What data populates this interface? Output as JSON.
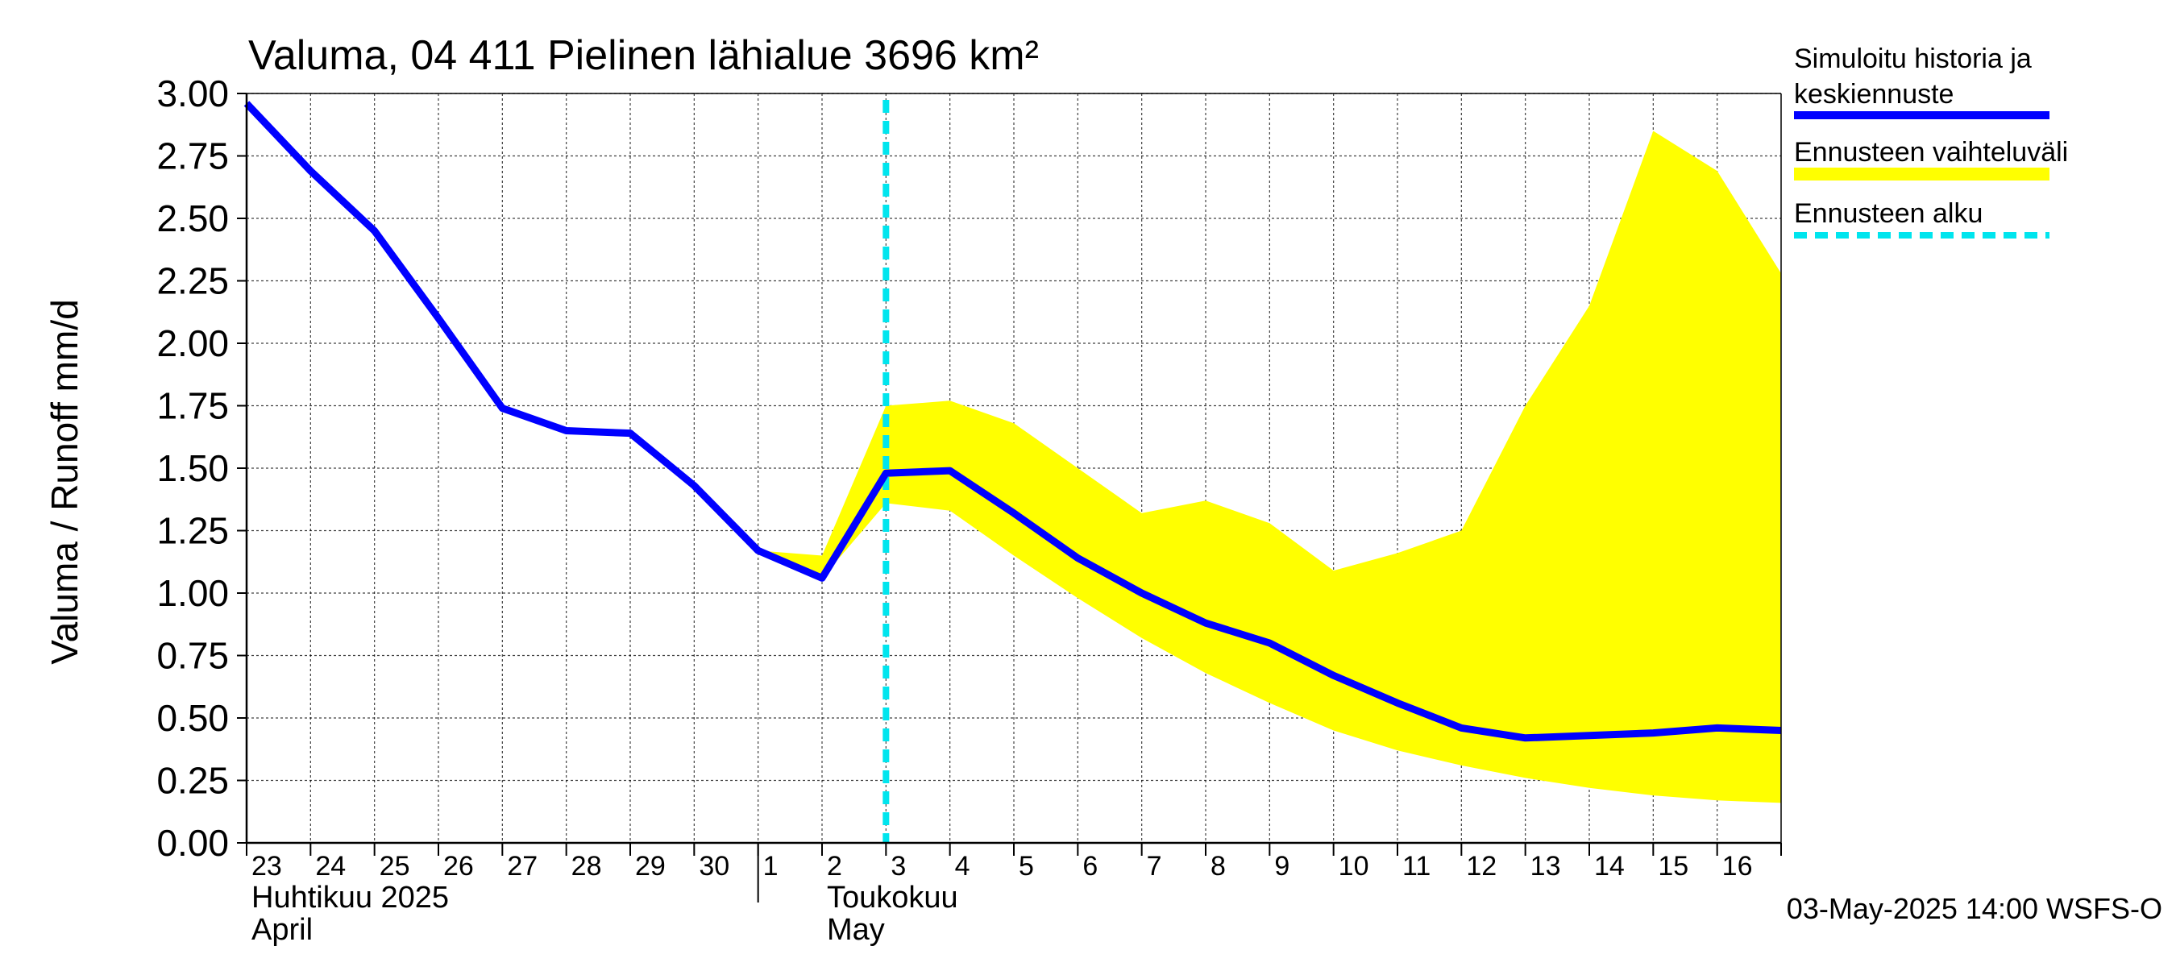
{
  "chart_data": {
    "type": "line",
    "title": "Valuma, 04 411 Pielinen lähialue 3696 km²",
    "ylabel": "Valuma / Runoff     mm/d",
    "xlabel": "",
    "ylim": [
      0,
      3.0
    ],
    "y_ticks": [
      "0.00",
      "0.25",
      "0.50",
      "0.75",
      "1.00",
      "1.25",
      "1.50",
      "1.75",
      "2.00",
      "2.25",
      "2.50",
      "2.75",
      "3.00"
    ],
    "grid": true,
    "x_dates": [
      "2025-04-23",
      "2025-04-24",
      "2025-04-25",
      "2025-04-26",
      "2025-04-27",
      "2025-04-28",
      "2025-04-29",
      "2025-04-30",
      "2025-05-01",
      "2025-05-02",
      "2025-05-03",
      "2025-05-04",
      "2025-05-05",
      "2025-05-06",
      "2025-05-07",
      "2025-05-08",
      "2025-05-09",
      "2025-05-10",
      "2025-05-11",
      "2025-05-12",
      "2025-05-13",
      "2025-05-14",
      "2025-05-15",
      "2025-05-16",
      "2025-05-17"
    ],
    "x_tick_labels": [
      "23",
      "24",
      "25",
      "26",
      "27",
      "28",
      "29",
      "30",
      "1",
      "2",
      "3",
      "4",
      "5",
      "6",
      "7",
      "8",
      "9",
      "10",
      "11",
      "12",
      "13",
      "14",
      "15",
      "16"
    ],
    "month_labels": [
      {
        "fi": "Huhtikuu  2025",
        "en": "April"
      },
      {
        "fi": "Toukokuu",
        "en": "May"
      }
    ],
    "series": [
      {
        "name": "Simuloitu historia ja keskiennuste",
        "color": "#0000ff",
        "x": [
          "2025-04-23",
          "2025-04-24",
          "2025-04-25",
          "2025-04-26",
          "2025-04-27",
          "2025-04-28",
          "2025-04-29",
          "2025-04-30",
          "2025-05-01",
          "2025-05-02",
          "2025-05-03",
          "2025-05-04",
          "2025-05-05",
          "2025-05-06",
          "2025-05-07",
          "2025-05-08",
          "2025-05-09",
          "2025-05-10",
          "2025-05-11",
          "2025-05-12",
          "2025-05-13",
          "2025-05-14",
          "2025-05-15",
          "2025-05-16",
          "2025-05-17"
        ],
        "values": [
          2.96,
          2.69,
          2.45,
          2.1,
          1.74,
          1.65,
          1.64,
          1.43,
          1.17,
          1.06,
          1.48,
          1.49,
          1.32,
          1.14,
          1.0,
          0.88,
          0.8,
          0.67,
          0.56,
          0.46,
          0.42,
          0.43,
          0.44,
          0.46,
          0.45
        ]
      }
    ],
    "band": {
      "name": "Ennusteen vaihteluväli",
      "color": "#ffff00",
      "x": [
        "2025-05-01",
        "2025-05-02",
        "2025-05-03",
        "2025-05-04",
        "2025-05-05",
        "2025-05-06",
        "2025-05-07",
        "2025-05-08",
        "2025-05-09",
        "2025-05-10",
        "2025-05-11",
        "2025-05-12",
        "2025-05-13",
        "2025-05-14",
        "2025-05-15",
        "2025-05-16",
        "2025-05-17"
      ],
      "upper": [
        1.17,
        1.15,
        1.75,
        1.77,
        1.68,
        1.5,
        1.32,
        1.37,
        1.28,
        1.09,
        1.16,
        1.25,
        1.75,
        2.15,
        2.85,
        2.69,
        2.28
      ],
      "lower": [
        1.17,
        1.06,
        1.36,
        1.33,
        1.15,
        0.98,
        0.82,
        0.68,
        0.56,
        0.45,
        0.37,
        0.31,
        0.26,
        0.22,
        0.19,
        0.17,
        0.16
      ]
    },
    "forecast_start": {
      "name": "Ennusteen alku",
      "color": "#00e5ee",
      "x": "2025-05-03"
    },
    "legend_position": "right",
    "footer": "03-May-2025 14:00 WSFS-O"
  }
}
